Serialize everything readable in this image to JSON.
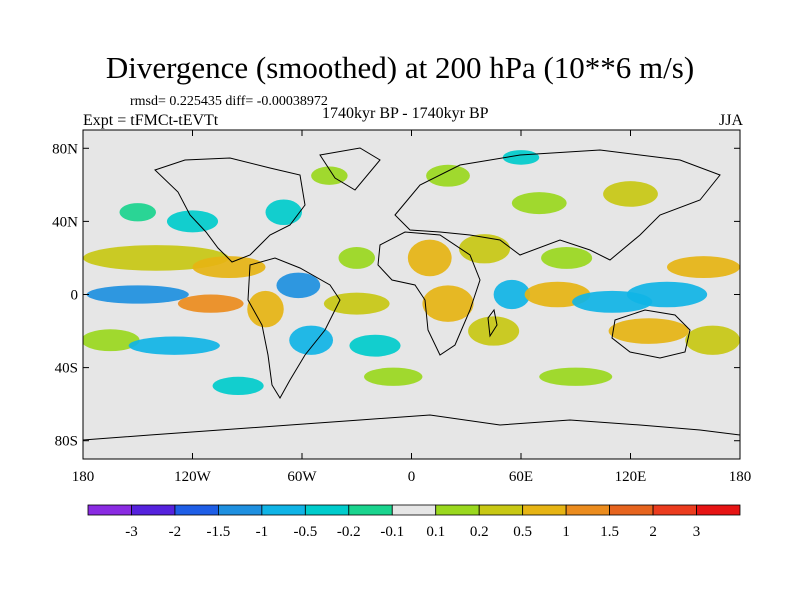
{
  "chart_data": {
    "type": "heatmap",
    "title": "Divergence (smoothed) at 200 hPa (10**6 m/s)",
    "stats_text": "rmsd= 0.225435 diff= -0.00038972",
    "experiment": "Expt = tFMCt-tEVTt",
    "period": "1740kyr BP - 1740kyr BP",
    "season": "JJA",
    "x_range": [
      -180,
      180
    ],
    "y_range": [
      -90,
      90
    ],
    "x_ticks": [
      {
        "value": -180,
        "label": "180"
      },
      {
        "value": -120,
        "label": "120W"
      },
      {
        "value": -60,
        "label": "60W"
      },
      {
        "value": 0,
        "label": "0"
      },
      {
        "value": 60,
        "label": "60E"
      },
      {
        "value": 120,
        "label": "120E"
      },
      {
        "value": 180,
        "label": "180"
      }
    ],
    "y_ticks": [
      {
        "value": 80,
        "label": "80N"
      },
      {
        "value": 40,
        "label": "40N"
      },
      {
        "value": 0,
        "label": "0"
      },
      {
        "value": -40,
        "label": "40S"
      },
      {
        "value": -80,
        "label": "80S"
      }
    ],
    "colorbar": {
      "colors": [
        "#8a2be2",
        "#5522dd",
        "#1e5ee6",
        "#1e90e0",
        "#10b4e6",
        "#00cccc",
        "#1ad48e",
        "#e6e6e6",
        "#9ad81e",
        "#c8c814",
        "#e6b414",
        "#eb8c1e",
        "#e6641e",
        "#eb3c1e",
        "#e61414"
      ],
      "levels": [
        "-3",
        "-2",
        "-1.5",
        "-1",
        "-0.5",
        "-0.2",
        "-0.1",
        "0.1",
        "0.2",
        "0.5",
        "1",
        "1.5",
        "2",
        "3"
      ]
    },
    "patches": [
      {
        "lon": -140,
        "lat": 20,
        "rx": 40,
        "ry": 7,
        "ci": 9
      },
      {
        "lon": -150,
        "lat": 0,
        "rx": 28,
        "ry": 5,
        "ci": 3
      },
      {
        "lon": -110,
        "lat": -5,
        "rx": 18,
        "ry": 5,
        "ci": 11
      },
      {
        "lon": -100,
        "lat": 15,
        "rx": 20,
        "ry": 6,
        "ci": 10
      },
      {
        "lon": -165,
        "lat": -25,
        "rx": 16,
        "ry": 6,
        "ci": 8
      },
      {
        "lon": -130,
        "lat": -28,
        "rx": 25,
        "ry": 5,
        "ci": 4
      },
      {
        "lon": -80,
        "lat": -8,
        "rx": 10,
        "ry": 10,
        "ci": 10
      },
      {
        "lon": -62,
        "lat": 5,
        "rx": 12,
        "ry": 7,
        "ci": 3
      },
      {
        "lon": -55,
        "lat": -25,
        "rx": 12,
        "ry": 8,
        "ci": 4
      },
      {
        "lon": -30,
        "lat": -5,
        "rx": 18,
        "ry": 6,
        "ci": 9
      },
      {
        "lon": -30,
        "lat": 20,
        "rx": 10,
        "ry": 6,
        "ci": 8
      },
      {
        "lon": -20,
        "lat": -28,
        "rx": 14,
        "ry": 6,
        "ci": 5
      },
      {
        "lon": -120,
        "lat": 40,
        "rx": 14,
        "ry": 6,
        "ci": 5
      },
      {
        "lon": -150,
        "lat": 45,
        "rx": 10,
        "ry": 5,
        "ci": 6
      },
      {
        "lon": -70,
        "lat": 45,
        "rx": 10,
        "ry": 7,
        "ci": 5
      },
      {
        "lon": -45,
        "lat": 65,
        "rx": 10,
        "ry": 5,
        "ci": 8
      },
      {
        "lon": 10,
        "lat": 20,
        "rx": 12,
        "ry": 10,
        "ci": 10
      },
      {
        "lon": 40,
        "lat": 25,
        "rx": 14,
        "ry": 8,
        "ci": 9
      },
      {
        "lon": 20,
        "lat": -5,
        "rx": 14,
        "ry": 10,
        "ci": 10
      },
      {
        "lon": 45,
        "lat": -20,
        "rx": 14,
        "ry": 8,
        "ci": 9
      },
      {
        "lon": 55,
        "lat": 0,
        "rx": 10,
        "ry": 8,
        "ci": 4
      },
      {
        "lon": 80,
        "lat": 0,
        "rx": 18,
        "ry": 7,
        "ci": 10
      },
      {
        "lon": 85,
        "lat": 20,
        "rx": 14,
        "ry": 6,
        "ci": 8
      },
      {
        "lon": 110,
        "lat": -4,
        "rx": 22,
        "ry": 6,
        "ci": 4
      },
      {
        "lon": 140,
        "lat": 0,
        "rx": 22,
        "ry": 7,
        "ci": 4
      },
      {
        "lon": 130,
        "lat": -20,
        "rx": 22,
        "ry": 7,
        "ci": 10
      },
      {
        "lon": 165,
        "lat": -25,
        "rx": 15,
        "ry": 8,
        "ci": 9
      },
      {
        "lon": 160,
        "lat": 15,
        "rx": 20,
        "ry": 6,
        "ci": 10
      },
      {
        "lon": 70,
        "lat": 50,
        "rx": 15,
        "ry": 6,
        "ci": 8
      },
      {
        "lon": 120,
        "lat": 55,
        "rx": 15,
        "ry": 7,
        "ci": 9
      },
      {
        "lon": 90,
        "lat": -45,
        "rx": 20,
        "ry": 5,
        "ci": 8
      },
      {
        "lon": -10,
        "lat": -45,
        "rx": 16,
        "ry": 5,
        "ci": 8
      },
      {
        "lon": 20,
        "lat": 65,
        "rx": 12,
        "ry": 6,
        "ci": 8
      },
      {
        "lon": 60,
        "lat": 75,
        "rx": 10,
        "ry": 4,
        "ci": 5
      },
      {
        "lon": -95,
        "lat": -50,
        "rx": 14,
        "ry": 5,
        "ci": 5
      }
    ]
  }
}
